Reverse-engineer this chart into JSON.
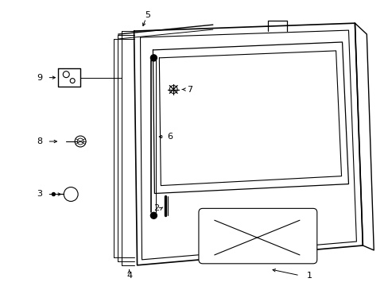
{
  "bg_color": "#ffffff",
  "line_color": "#000000",
  "figsize": [
    4.89,
    3.6
  ],
  "dpi": 100,
  "label_fontsize": 8
}
